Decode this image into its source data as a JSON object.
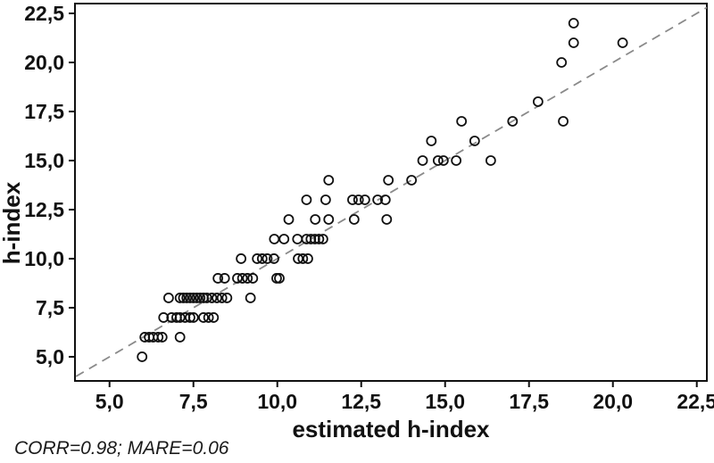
{
  "figure": {
    "background": "#ffffff"
  },
  "colors": {
    "axis": "#111111",
    "marker_stroke": "#111111",
    "identity_line": "#8a8a8a",
    "text": "#111111"
  },
  "chart_data": {
    "type": "scatter",
    "title": "",
    "xlabel": "estimated h-index",
    "ylabel": "h-index",
    "annotation": "CORR=0.98; MARE=0.06",
    "grid": false,
    "legend": null,
    "xlim": [
      3.97,
      22.8
    ],
    "ylim": [
      3.77,
      23.0
    ],
    "x_tick_values": [
      5,
      7.5,
      10,
      12.5,
      15,
      17.5,
      20,
      22.5
    ],
    "x_tick_labels": [
      "5,0",
      "7,5",
      "10,0",
      "12,5",
      "15,0",
      "17,5",
      "20,0",
      "22,5"
    ],
    "y_tick_values": [
      5,
      7.5,
      10,
      12.5,
      15,
      17.5,
      20,
      22.5
    ],
    "y_tick_labels": [
      "5,0",
      "7,5",
      "10,0",
      "12,5",
      "15,0",
      "17,5",
      "20,0",
      "22,5"
    ],
    "identity_line": {
      "style": "dashed",
      "x_from": 4.0,
      "x_to": 22.8,
      "equation": "y=x"
    },
    "marker": {
      "shape": "circle",
      "fill": "none",
      "radius": 5,
      "stroke_width": 1.8
    },
    "points": [
      [
        5.97,
        5
      ],
      [
        6.05,
        6
      ],
      [
        6.18,
        6
      ],
      [
        6.3,
        6
      ],
      [
        6.45,
        6
      ],
      [
        6.57,
        6
      ],
      [
        7.1,
        6
      ],
      [
        6.61,
        7
      ],
      [
        6.85,
        7
      ],
      [
        7.0,
        7
      ],
      [
        7.1,
        7
      ],
      [
        7.25,
        7
      ],
      [
        7.4,
        7
      ],
      [
        7.5,
        7
      ],
      [
        7.8,
        7
      ],
      [
        7.95,
        7
      ],
      [
        8.1,
        7
      ],
      [
        6.76,
        8
      ],
      [
        7.1,
        8
      ],
      [
        7.2,
        8
      ],
      [
        7.3,
        8
      ],
      [
        7.4,
        8
      ],
      [
        7.5,
        8
      ],
      [
        7.6,
        8
      ],
      [
        7.7,
        8
      ],
      [
        7.8,
        8
      ],
      [
        7.9,
        8
      ],
      [
        8.05,
        8
      ],
      [
        8.2,
        8
      ],
      [
        8.35,
        8
      ],
      [
        8.5,
        8
      ],
      [
        9.2,
        8
      ],
      [
        8.23,
        9
      ],
      [
        8.43,
        9
      ],
      [
        8.81,
        9
      ],
      [
        8.96,
        9
      ],
      [
        9.11,
        9
      ],
      [
        9.27,
        9
      ],
      [
        9.98,
        9
      ],
      [
        10.06,
        9
      ],
      [
        8.92,
        10
      ],
      [
        9.4,
        10
      ],
      [
        9.55,
        10
      ],
      [
        9.7,
        10
      ],
      [
        9.9,
        10
      ],
      [
        10.62,
        10
      ],
      [
        10.76,
        10
      ],
      [
        10.91,
        10
      ],
      [
        9.91,
        11
      ],
      [
        10.2,
        11
      ],
      [
        10.6,
        11
      ],
      [
        10.87,
        11
      ],
      [
        11.0,
        11
      ],
      [
        11.12,
        11
      ],
      [
        11.24,
        11
      ],
      [
        11.36,
        11
      ],
      [
        10.34,
        12
      ],
      [
        11.13,
        12
      ],
      [
        11.53,
        12
      ],
      [
        12.29,
        12
      ],
      [
        13.26,
        12
      ],
      [
        10.87,
        13
      ],
      [
        11.44,
        13
      ],
      [
        12.24,
        13
      ],
      [
        12.42,
        13
      ],
      [
        12.61,
        13
      ],
      [
        12.99,
        13
      ],
      [
        13.22,
        13
      ],
      [
        11.53,
        14
      ],
      [
        13.31,
        14
      ],
      [
        14.0,
        14
      ],
      [
        14.33,
        15
      ],
      [
        14.79,
        15
      ],
      [
        14.95,
        15
      ],
      [
        15.33,
        15
      ],
      [
        16.36,
        15
      ],
      [
        14.59,
        16
      ],
      [
        15.88,
        16
      ],
      [
        15.49,
        17
      ],
      [
        17.01,
        17
      ],
      [
        18.52,
        17
      ],
      [
        17.77,
        18
      ],
      [
        18.47,
        20
      ],
      [
        18.83,
        21
      ],
      [
        20.29,
        21
      ],
      [
        18.83,
        22
      ]
    ]
  }
}
